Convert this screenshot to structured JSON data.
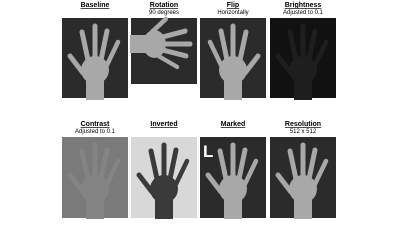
{
  "panels": [
    {
      "title": "Baseline"
    },
    {
      "title": "Rotation",
      "subtitle": "90 degrees"
    },
    {
      "title": "Flip",
      "subtitle": "Horizontally"
    },
    {
      "title": "Brightness",
      "subtitle": "Adjusted to 0.1"
    },
    {
      "title": "Contrast",
      "subtitle": "Adjusted to 0.1"
    },
    {
      "title": "Inverted"
    },
    {
      "title": "Marked",
      "marker": "L"
    },
    {
      "title": "Resolution",
      "subtitle": "512 x 512"
    }
  ]
}
